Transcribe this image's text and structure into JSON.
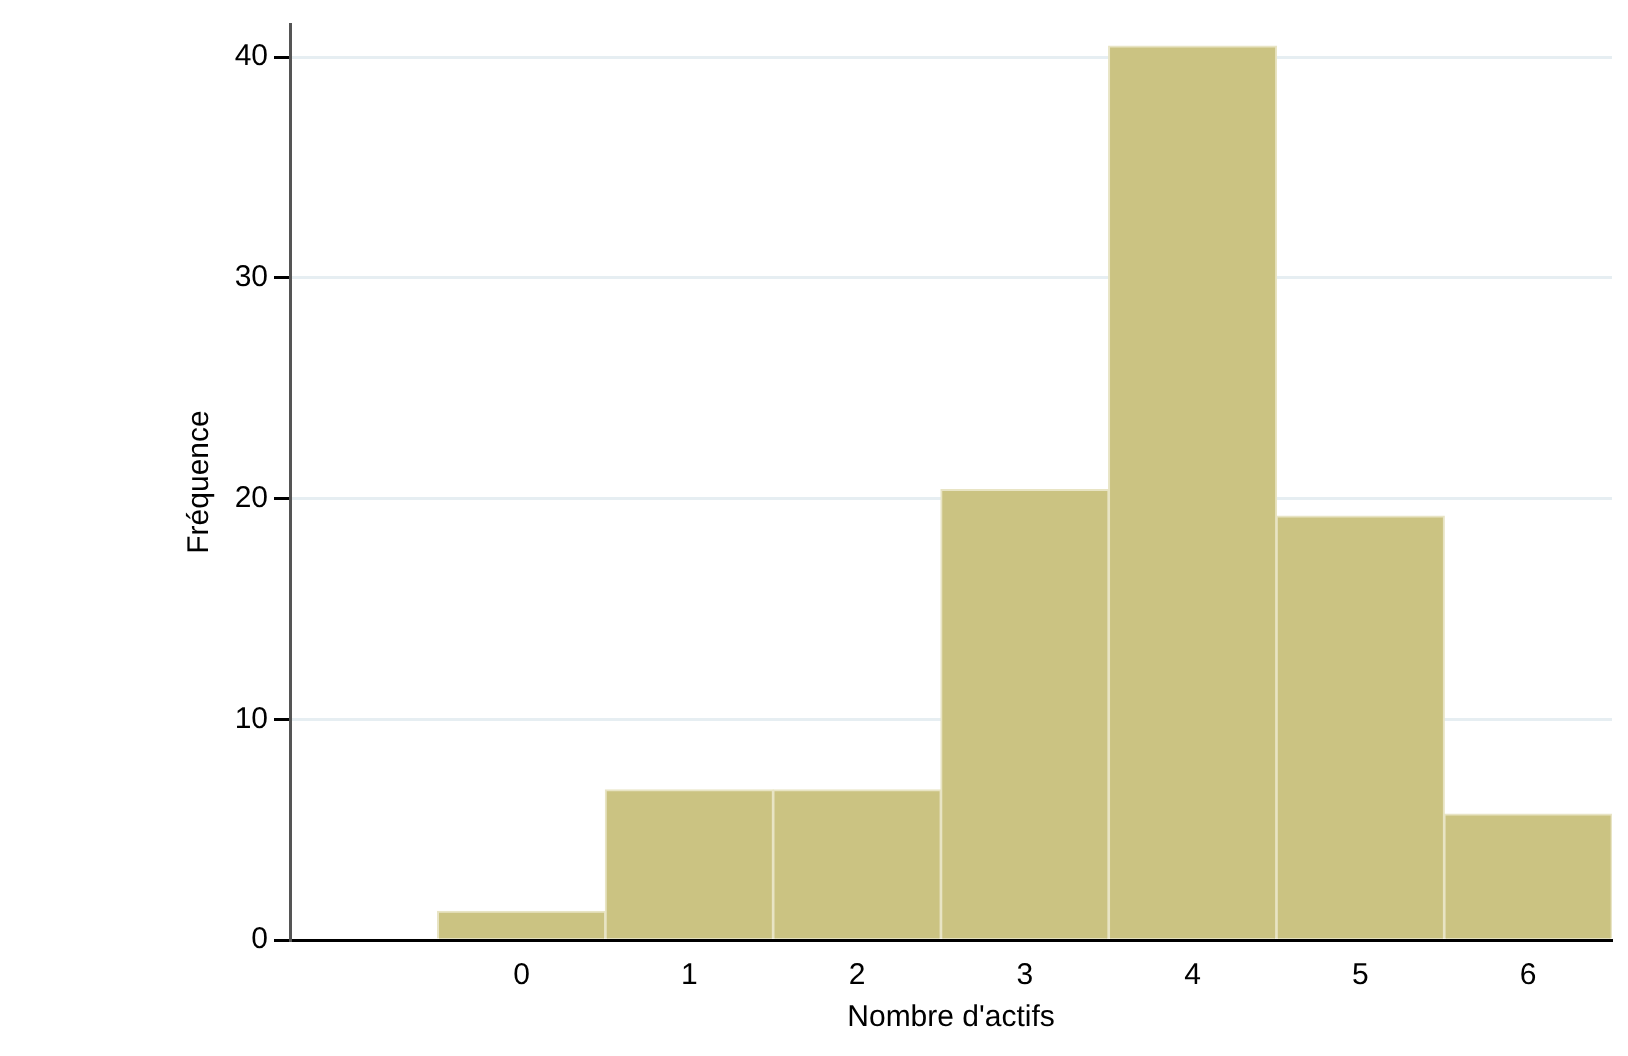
{
  "chart_data": {
    "type": "histogram",
    "xlabel": "Nombre d'actifs",
    "ylabel": "Fréquence",
    "bins": [
      -0.5,
      0.5,
      1.5,
      2.5,
      3.5,
      4.5,
      5.5,
      6.5
    ],
    "values": [
      1.3,
      6.8,
      6.8,
      20.4,
      40.5,
      19.2,
      5.7
    ],
    "color": "#cbc382",
    "xlim": [
      -1.38,
      6.5
    ],
    "xticks": [
      0,
      1,
      2,
      3,
      4,
      5,
      6
    ],
    "ylim": [
      0,
      41.5
    ],
    "yticks": [
      0,
      10,
      20,
      30,
      40
    ],
    "grid": "y",
    "legend": false
  }
}
